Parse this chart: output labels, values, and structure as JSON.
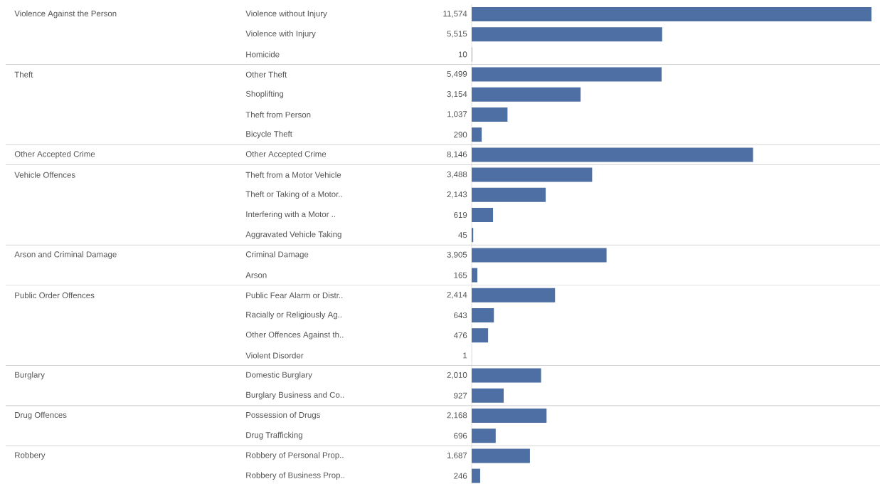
{
  "chart_data": {
    "type": "bar",
    "orientation": "horizontal",
    "color": "#4e6fa3",
    "value_labels": [
      "11,574",
      "5,515",
      "10",
      "5,499",
      "3,154",
      "1,037",
      "290",
      "8,146",
      "3,488",
      "2,143",
      "619",
      "45",
      "3,905",
      "165",
      "2,414",
      "643",
      "476",
      "1",
      "2,010",
      "927",
      "2,168",
      "696",
      "1,687",
      "246"
    ],
    "categories": [
      "Violence without Injury",
      "Violence with Injury",
      "Homicide",
      "Other Theft",
      "Shoplifting",
      "Theft from Person",
      "Bicycle Theft",
      "Other Accepted Crime",
      "Theft from a Motor Vehicle",
      "Theft or Taking of a Motor..",
      "Interfering with a Motor ..",
      "Aggravated Vehicle Taking",
      "Criminal Damage",
      "Arson",
      "Public Fear Alarm or Distr..",
      "Racially or Religiously Ag..",
      "Other Offences Against th..",
      "Violent Disorder",
      "Domestic Burglary",
      "Burglary Business and Co..",
      "Possession of Drugs",
      "Drug Trafficking",
      "Robbery of Personal Prop..",
      "Robbery of Business Prop.."
    ],
    "values": [
      11574,
      5515,
      10,
      5499,
      3154,
      1037,
      290,
      8146,
      3488,
      2143,
      619,
      45,
      3905,
      165,
      2414,
      643,
      476,
      1,
      2010,
      927,
      2168,
      696,
      1687,
      246
    ],
    "annotations": [
      "Violence Against the Person",
      "Theft",
      "Other Accepted Crime",
      "Vehicle Offences",
      "Arson and Criminal Damage",
      "Public Order Offences",
      "Burglary",
      "Drug Offences",
      "Robbery"
    ]
  }
}
